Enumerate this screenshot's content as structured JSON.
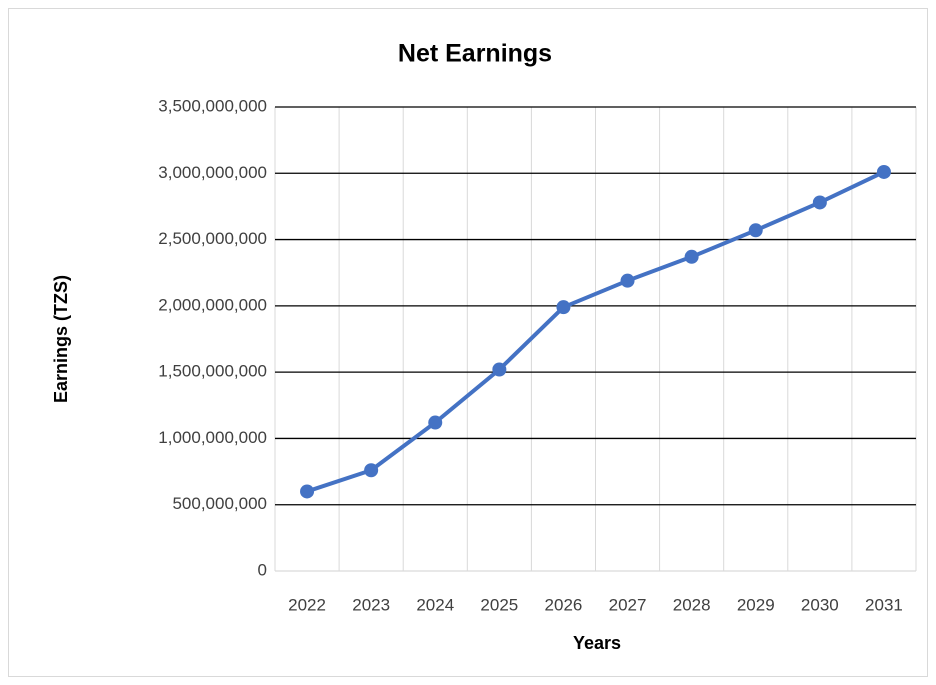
{
  "chart_data": {
    "type": "line",
    "title": "Net Earnings",
    "x_label": "Years",
    "y_label": "Earnings (TZS)",
    "categories": [
      "2022",
      "2023",
      "2024",
      "2025",
      "2026",
      "2027",
      "2028",
      "2029",
      "2030",
      "2031"
    ],
    "series": [
      {
        "name": "Net Earnings",
        "color": "#4472c4",
        "values": [
          600000000,
          760000000,
          1120000000,
          1520000000,
          1990000000,
          2190000000,
          2370000000,
          2570000000,
          2780000000,
          3010000000
        ]
      }
    ],
    "ylim": [
      0,
      3500000000
    ],
    "yticks": [
      0,
      {
        "value": 500000000,
        "label": "500,000,000"
      },
      {
        "value": 1000000000,
        "label": "1,000,000,000"
      },
      {
        "value": 1500000000,
        "label": "1,500,000,000"
      },
      {
        "value": 2000000000,
        "label": "2,000,000,000"
      },
      {
        "value": 2500000000,
        "label": "2,500,000,000"
      },
      {
        "value": 3000000000,
        "label": "3,000,000,000"
      },
      {
        "value": 3500000000,
        "label": "3,500,000,000"
      }
    ],
    "grid": true
  }
}
